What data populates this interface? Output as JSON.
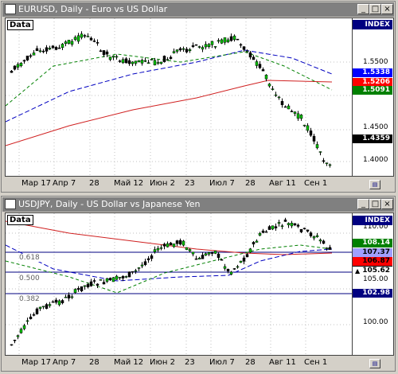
{
  "colors": {
    "bg": "#d4d0c8",
    "title_inactive": "#808080",
    "index_badge": "#000080",
    "candle": "#008000",
    "ma_long": "#d02020",
    "ma_mid": "#008000",
    "ma_short": "#0000c0"
  },
  "windows": [
    {
      "title": "EURUSD, Daily - Euro vs US Dollar",
      "data_label": "Data",
      "index_label": "INDEX",
      "price_labels": [
        "1.5500",
        "1.5000",
        "1.4500",
        "1.4000"
      ],
      "boxes": [
        {
          "text": "1.5338",
          "bg": "#0000ff",
          "fg": "#ffffff"
        },
        {
          "text": "1.5206",
          "bg": "#ff0000",
          "fg": "#ffffff"
        },
        {
          "text": "1.5091",
          "bg": "#008000",
          "fg": "#ffffff"
        },
        {
          "text": "1.4359",
          "bg": "#000000",
          "fg": "#ffffff"
        }
      ],
      "xaxis": [
        "Мар 17",
        "Апр 7",
        "28",
        "Май 12",
        "Июн 2",
        "23",
        "Июл 7",
        "28",
        "Авг 11",
        "Сен 1"
      ],
      "nav_icon": "navigation-icon"
    },
    {
      "title": "USDJPY, Daily - US Dollar vs Japanese Yen",
      "data_label": "Data",
      "index_label": "INDEX",
      "price_labels": [
        "110.00",
        "105.00",
        "100.00"
      ],
      "fib_levels": [
        "0.618",
        "0.500",
        "0.382"
      ],
      "boxes": [
        {
          "text": "108.14",
          "bg": "#008000",
          "fg": "#ffffff"
        },
        {
          "text": "107.37",
          "bg": "#a0a0ff",
          "fg": "#000000"
        },
        {
          "text": "106.87",
          "bg": "#ff0000",
          "fg": "#000000"
        },
        {
          "text": "105.62",
          "bg": "#ffffff",
          "fg": "#000000"
        },
        {
          "text": "102.98",
          "bg": "#000080",
          "fg": "#ffffff"
        }
      ],
      "xaxis": [
        "Мар 17",
        "Апр 7",
        "28",
        "Май 12",
        "Июн 2",
        "23",
        "Июл 7",
        "28",
        "Авг 11",
        "Сен 1"
      ],
      "nav_icon": "navigation-icon"
    }
  ]
}
